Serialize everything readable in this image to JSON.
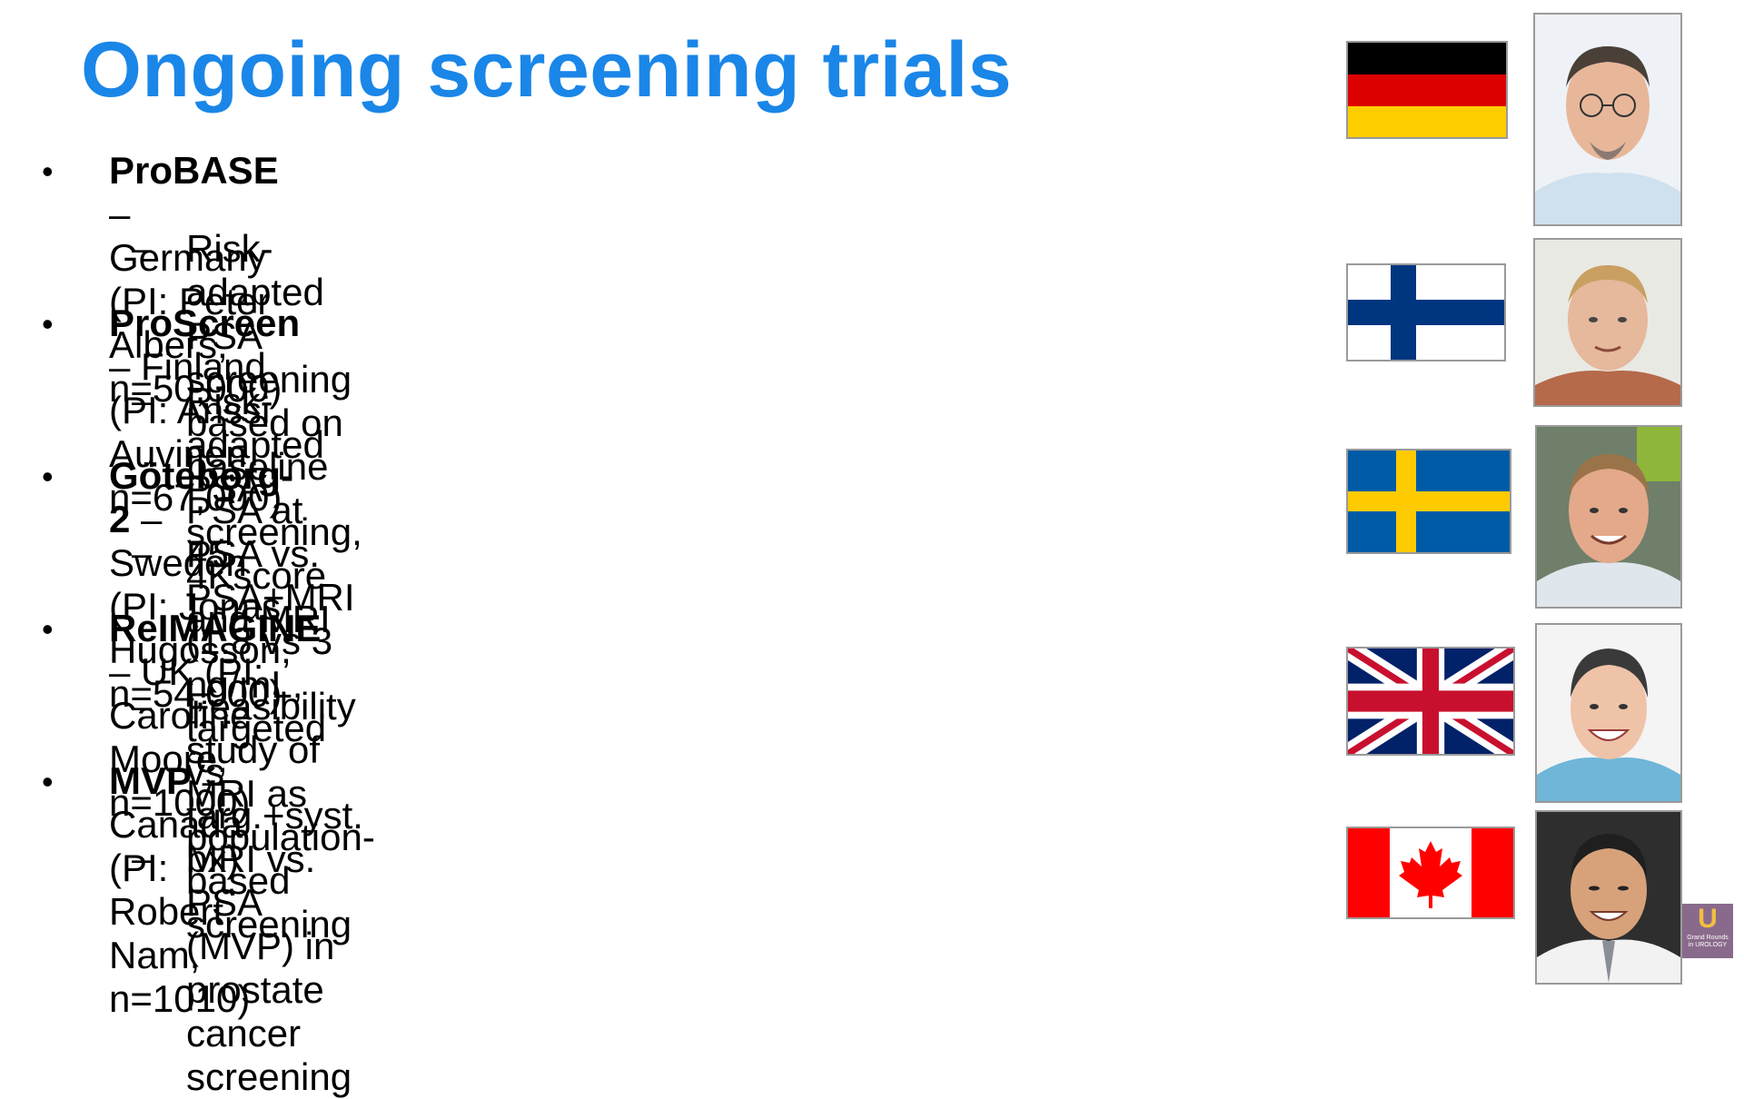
{
  "title": "Ongoing screening trials",
  "trials": [
    {
      "name": "ProBASE",
      "rest": " – Germany (PI: Peter Albers, n=50,000)",
      "detail": "Risk-adapted PSA screening based on baseline PSA at 45",
      "flag": "germany-flag-icon"
    },
    {
      "name": "ProScreen",
      "rest": " – Finland (PI: Anssi Auvinen, n=67,000)",
      "detail": "Risk-adapted PSA screening, 4Kscore and MRI",
      "flag": "finland-flag-icon"
    },
    {
      "name": "Göteborg-2",
      "rest": " – Sweden (PI: Jonas Hugosson, n=54,000)",
      "detail": "PSA vs. PSA+MRI (1.8 vs 3 ng/mL, targeted vs targ.+syst. bx)",
      "flag": "sweden-flag-icon"
    },
    {
      "name": "ReIMAGINE",
      "rest": " – UK (PI: Caroline Moore, n=1000)",
      "detail": "Feasibility study of MRI as population-based screening",
      "flag": "uk-flag-icon"
    },
    {
      "name": "MVP",
      "rest": " – Canada (PI: Robert Nam, n=1010)",
      "detail": "MRI vs. PSA (MVP) in prostate cancer screening",
      "flag": "canada-flag-icon"
    }
  ],
  "bullet_char": "•",
  "dash_char": "–",
  "logo": {
    "letter": "U",
    "text_line1": "Grand Rounds",
    "text_line2": "in UROLOGY"
  },
  "colors": {
    "title": "#1a86e8"
  }
}
